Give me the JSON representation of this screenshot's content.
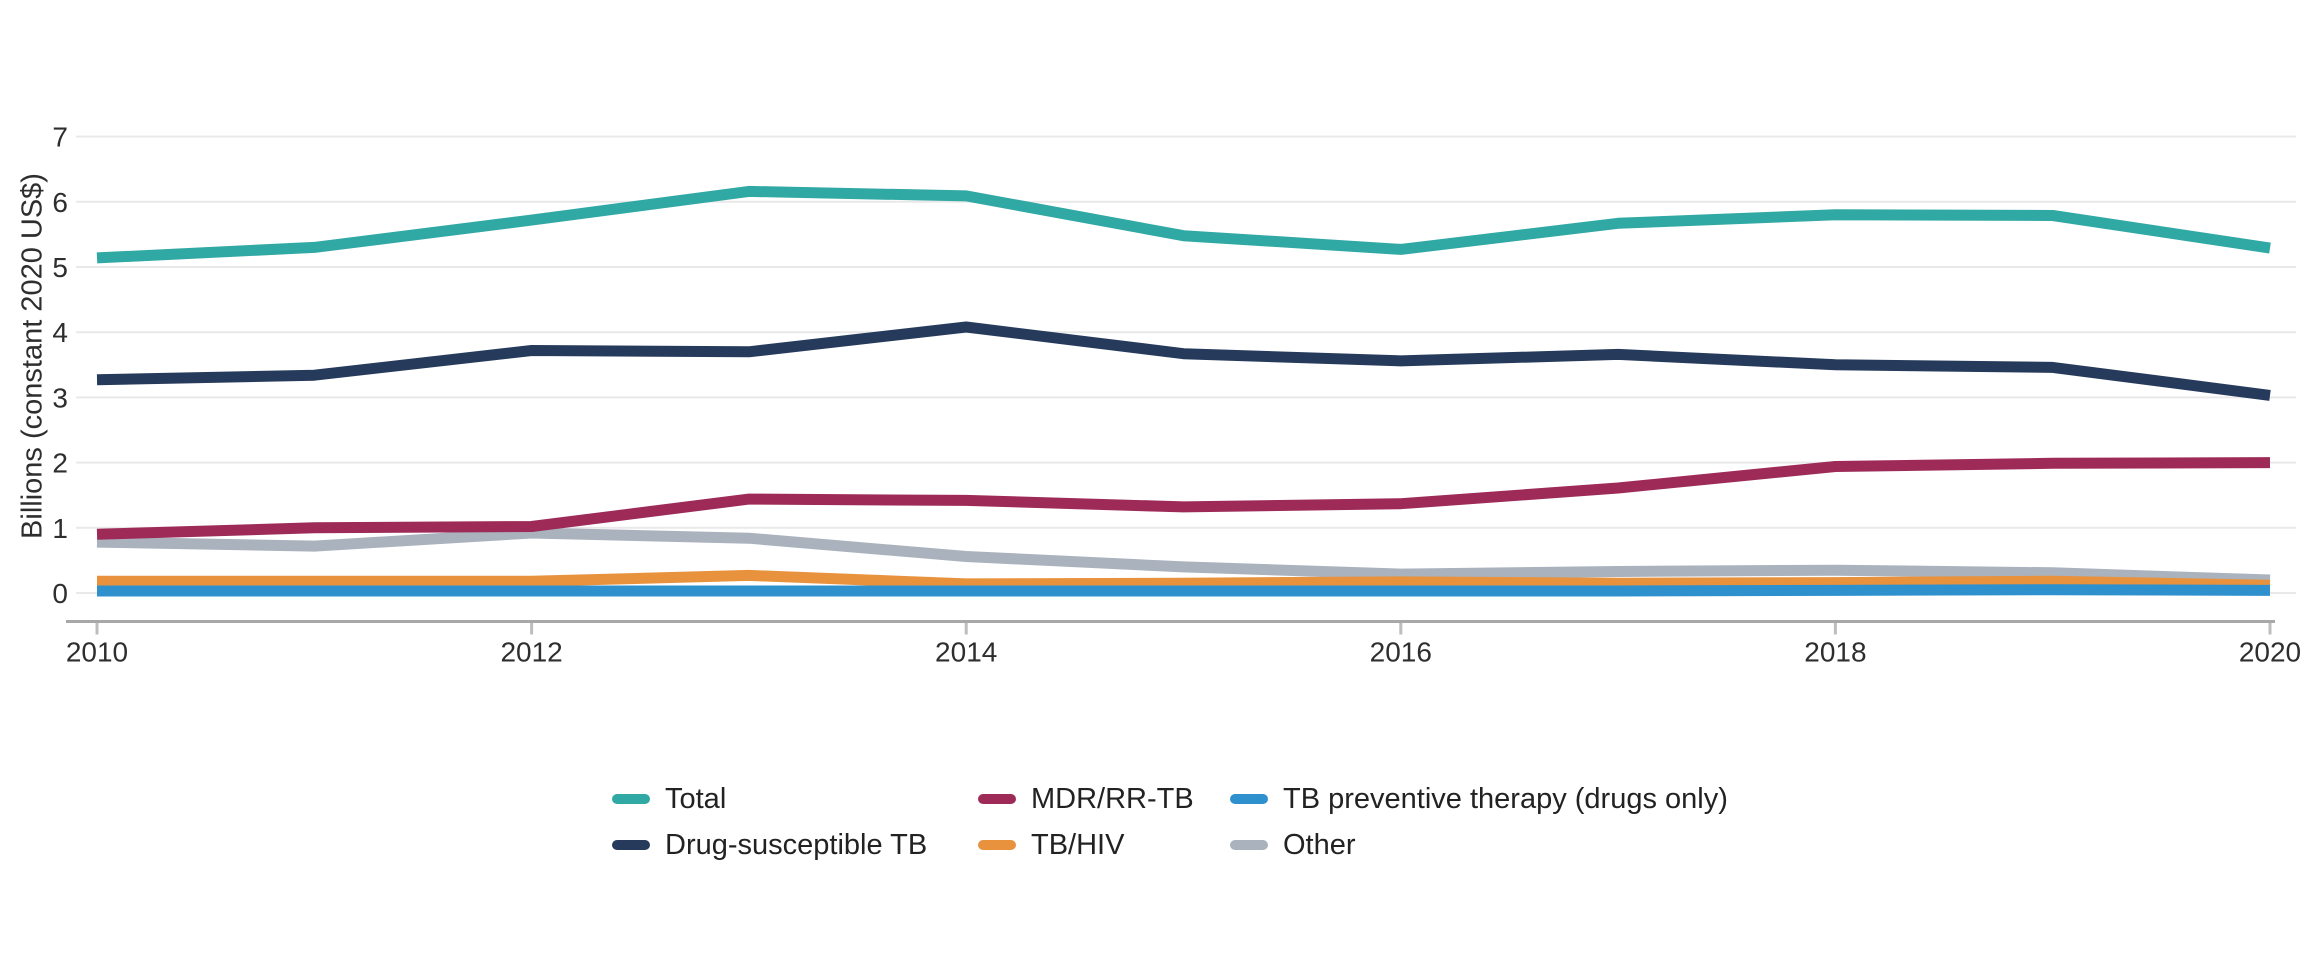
{
  "chart_data": {
    "type": "line",
    "title": "",
    "xlabel": "",
    "ylabel": "Billions (constant 2020 US$)",
    "x": [
      2010,
      2011,
      2012,
      2013,
      2014,
      2015,
      2016,
      2017,
      2018,
      2019,
      2020
    ],
    "x_ticks": [
      2010,
      2012,
      2014,
      2016,
      2018,
      2020
    ],
    "y_ticks": [
      0,
      1,
      2,
      3,
      4,
      5,
      6,
      7
    ],
    "xlim": [
      2010,
      2020
    ],
    "ylim": [
      0,
      7
    ],
    "grid": true,
    "legend_position": "bottom",
    "series": [
      {
        "name": "Total",
        "color": "#30A8A4",
        "values": [
          5.14,
          5.3,
          5.72,
          6.16,
          6.09,
          5.48,
          5.27,
          5.67,
          5.8,
          5.79,
          5.29
        ]
      },
      {
        "name": "Drug-susceptible TB",
        "color": "#263A5B",
        "values": [
          3.27,
          3.34,
          3.72,
          3.7,
          4.08,
          3.67,
          3.56,
          3.66,
          3.5,
          3.46,
          3.03
        ]
      },
      {
        "name": "MDR/RR-TB",
        "color": "#9D2A57",
        "values": [
          0.9,
          1.0,
          1.02,
          1.44,
          1.42,
          1.32,
          1.37,
          1.61,
          1.94,
          1.99,
          2.0
        ]
      },
      {
        "name": "TB/HIV",
        "color": "#E8923E",
        "values": [
          0.18,
          0.18,
          0.18,
          0.27,
          0.14,
          0.15,
          0.17,
          0.15,
          0.16,
          0.18,
          0.12
        ]
      },
      {
        "name": "TB preventive therapy (drugs only)",
        "color": "#2F90CE",
        "values": [
          0.03,
          0.03,
          0.03,
          0.03,
          0.03,
          0.03,
          0.03,
          0.03,
          0.04,
          0.05,
          0.04
        ]
      },
      {
        "name": "Other",
        "color": "#A9B2BD",
        "values": [
          0.78,
          0.72,
          0.92,
          0.84,
          0.56,
          0.4,
          0.29,
          0.33,
          0.35,
          0.31,
          0.2
        ]
      }
    ],
    "colors": {
      "gridline": "#E9E9E9",
      "axis_line": "#A8A8A8",
      "tick_mark": "#BDBDBD",
      "text": "#2E2E2E"
    }
  },
  "legend": {
    "items": [
      {
        "label": "Total",
        "color": "#30A8A4"
      },
      {
        "label": "MDR/RR-TB",
        "color": "#9D2A57"
      },
      {
        "label": "TB preventive therapy (drugs only)",
        "color": "#2F90CE"
      },
      {
        "label": "Drug-susceptible TB",
        "color": "#263A5B"
      },
      {
        "label": "TB/HIV",
        "color": "#E8923E"
      },
      {
        "label": "Other",
        "color": "#A9B2BD"
      }
    ]
  }
}
